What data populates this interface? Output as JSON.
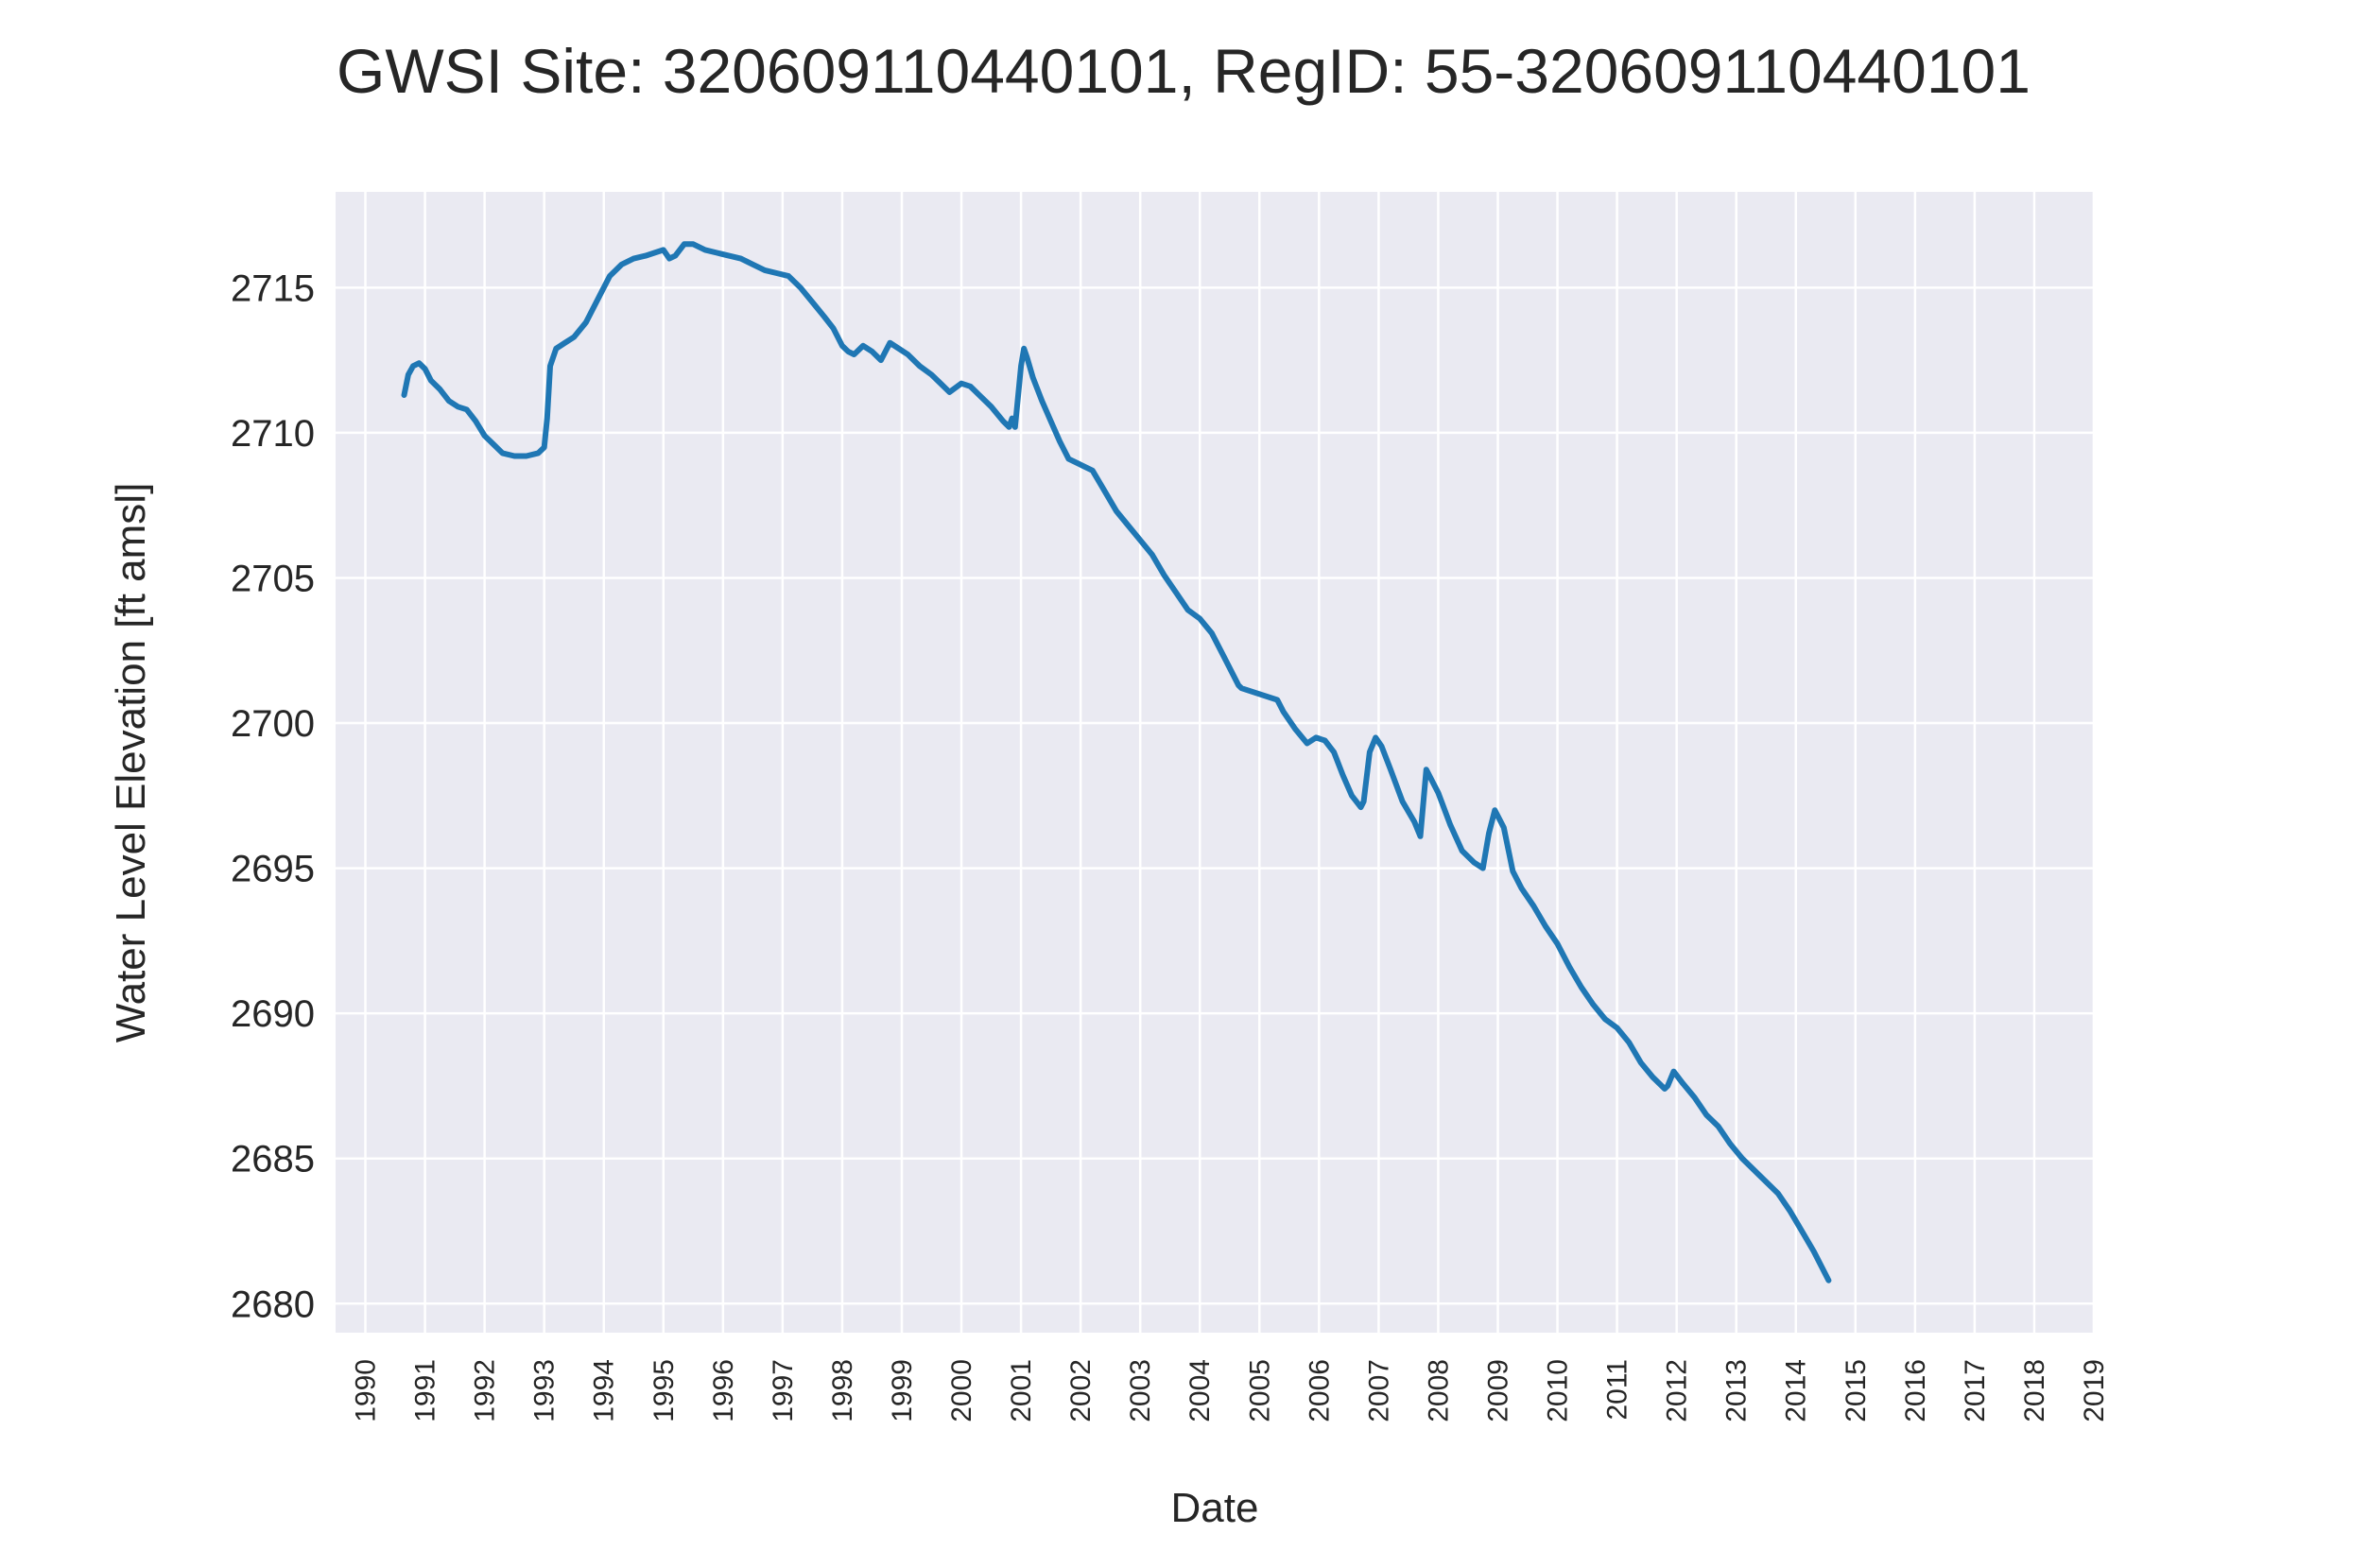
{
  "chart_data": {
    "type": "line",
    "title": "GWSI Site: 320609110440101, RegID: 55-320609110440101",
    "xlabel": "Date",
    "ylabel": "Water Level Elevation [ft amsl]",
    "xlim": [
      1989.5,
      2019.0
    ],
    "ylim": [
      2679.0,
      2718.3
    ],
    "yticks": [
      2680,
      2685,
      2690,
      2695,
      2700,
      2705,
      2710,
      2715
    ],
    "xticks": [
      "1990",
      "1991",
      "1992",
      "1993",
      "1994",
      "1995",
      "1996",
      "1997",
      "1998",
      "1999",
      "2000",
      "2001",
      "2002",
      "2003",
      "2004",
      "2005",
      "2006",
      "2007",
      "2008",
      "2009",
      "2010",
      "2011",
      "2012",
      "2013",
      "2014",
      "2015",
      "2016",
      "2017",
      "2018",
      "2019"
    ],
    "grid": true,
    "background_color": "#eaeaf2",
    "line_color": "#1f77b4",
    "series": [
      {
        "x": [
          1990.65,
          1990.72,
          1990.8,
          1990.9,
          1991.0,
          1991.1,
          1991.25,
          1991.4,
          1991.55,
          1991.7,
          1991.85,
          1992.0,
          1992.15,
          1992.3,
          1992.5,
          1992.7,
          1992.9,
          1993.0,
          1993.05,
          1993.1,
          1993.2,
          1993.35,
          1993.5,
          1993.7,
          1993.9,
          1994.1,
          1994.3,
          1994.5,
          1994.7,
          1994.85,
          1995.0,
          1995.1,
          1995.2,
          1995.35,
          1995.5,
          1995.7,
          1995.9,
          1996.1,
          1996.3,
          1996.5,
          1996.7,
          1996.9,
          1997.1,
          1997.3,
          1997.5,
          1997.7,
          1997.85,
          1998.0,
          1998.1,
          1998.2,
          1998.35,
          1998.5,
          1998.65,
          1998.8,
          1998.95,
          1999.1,
          1999.3,
          1999.5,
          1999.65,
          1999.8,
          2000.0,
          2000.15,
          2000.3,
          2000.5,
          2000.7,
          2000.8,
          2000.85,
          2000.9,
          2001.0,
          2001.05,
          2001.1,
          2001.2,
          2001.35,
          2001.5,
          2001.65,
          2001.8,
          2002.0,
          2002.2,
          2002.4,
          2002.6,
          2002.8,
          2003.0,
          2003.2,
          2003.4,
          2003.6,
          2003.8,
          2004.0,
          2004.2,
          2004.4,
          2004.65,
          2004.7,
          2005.3,
          2005.4,
          2005.6,
          2005.8,
          2005.95,
          2006.1,
          2006.25,
          2006.4,
          2006.55,
          2006.7,
          2006.75,
          2006.85,
          2006.95,
          2007.05,
          2007.2,
          2007.4,
          2007.6,
          2007.7,
          2007.8,
          2007.9,
          2008.0,
          2008.2,
          2008.4,
          2008.6,
          2008.75,
          2008.85,
          2008.95,
          2009.1,
          2009.25,
          2009.4,
          2009.6,
          2009.8,
          2010.0,
          2010.2,
          2010.4,
          2010.6,
          2010.8,
          2011.0,
          2011.2,
          2011.4,
          2011.6,
          2011.8,
          2011.85,
          2011.95,
          2012.1,
          2012.3,
          2012.5,
          2012.7,
          2012.9,
          2013.1,
          2013.4,
          2013.7,
          2013.9,
          2014.1,
          2014.3,
          2014.5,
          2014.55
        ],
        "y": [
          2711.3,
          2712.0,
          2712.3,
          2712.4,
          2712.2,
          2711.8,
          2711.5,
          2711.1,
          2710.9,
          2710.8,
          2710.4,
          2709.9,
          2709.6,
          2709.3,
          2709.2,
          2709.2,
          2709.3,
          2709.5,
          2710.5,
          2712.3,
          2712.9,
          2713.1,
          2713.3,
          2713.8,
          2714.6,
          2715.4,
          2715.8,
          2716.0,
          2716.1,
          2716.2,
          2716.3,
          2716.0,
          2716.1,
          2716.5,
          2716.5,
          2716.3,
          2716.2,
          2716.1,
          2716.0,
          2715.8,
          2715.6,
          2715.5,
          2715.4,
          2715.0,
          2714.5,
          2714.0,
          2713.6,
          2713.0,
          2712.8,
          2712.7,
          2713.0,
          2712.8,
          2712.5,
          2713.1,
          2712.9,
          2712.7,
          2712.3,
          2712.0,
          2711.7,
          2711.4,
          2711.7,
          2711.6,
          2711.3,
          2710.9,
          2710.4,
          2710.2,
          2710.5,
          2710.2,
          2712.3,
          2712.9,
          2712.6,
          2711.9,
          2711.1,
          2710.4,
          2709.7,
          2709.1,
          2708.9,
          2708.7,
          2708.0,
          2707.3,
          2706.8,
          2706.3,
          2705.8,
          2705.1,
          2704.5,
          2703.9,
          2703.6,
          2703.1,
          2702.3,
          2701.3,
          2701.2,
          2700.8,
          2700.4,
          2699.8,
          2699.3,
          2699.5,
          2699.4,
          2699.0,
          2698.2,
          2697.5,
          2697.1,
          2697.3,
          2699.0,
          2699.5,
          2699.2,
          2698.4,
          2697.3,
          2696.6,
          2696.1,
          2698.4,
          2698.0,
          2697.6,
          2696.5,
          2695.6,
          2695.2,
          2695.0,
          2696.2,
          2697.0,
          2696.4,
          2694.9,
          2694.3,
          2693.7,
          2693.0,
          2692.4,
          2691.6,
          2690.9,
          2690.3,
          2689.8,
          2689.5,
          2689.0,
          2688.3,
          2687.8,
          2687.4,
          2687.5,
          2688.0,
          2687.6,
          2687.1,
          2686.5,
          2686.1,
          2685.5,
          2685.0,
          2684.4,
          2683.8,
          2683.2,
          2682.5,
          2681.8,
          2681.0,
          2680.8
        ]
      }
    ]
  }
}
